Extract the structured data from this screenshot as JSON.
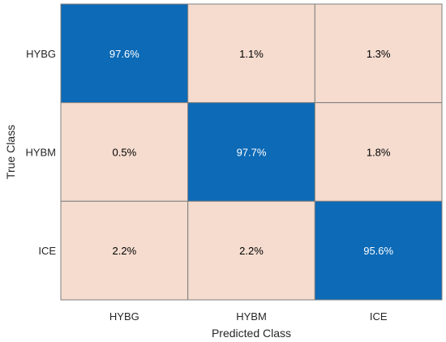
{
  "chart_data": {
    "type": "heatmap",
    "title": "",
    "xlabel": "Predicted Class",
    "ylabel": "True Class",
    "x_categories": [
      "HYBG",
      "HYBM",
      "ICE"
    ],
    "y_categories": [
      "HYBG",
      "HYBM",
      "ICE"
    ],
    "values": [
      [
        97.6,
        1.1,
        1.3
      ],
      [
        0.5,
        97.7,
        1.8
      ],
      [
        2.2,
        2.2,
        95.6
      ]
    ],
    "cell_labels": [
      [
        "97.6%",
        "1.1%",
        "1.3%"
      ],
      [
        "0.5%",
        "97.7%",
        "1.8%"
      ],
      [
        "2.2%",
        "2.2%",
        "95.6%"
      ]
    ],
    "colors": {
      "high": "#0c6ab6",
      "low": "#f5dccf",
      "grid_line": "#7f7f7f",
      "text_on_high": "#ffffff",
      "text_on_low": "#000000"
    }
  }
}
